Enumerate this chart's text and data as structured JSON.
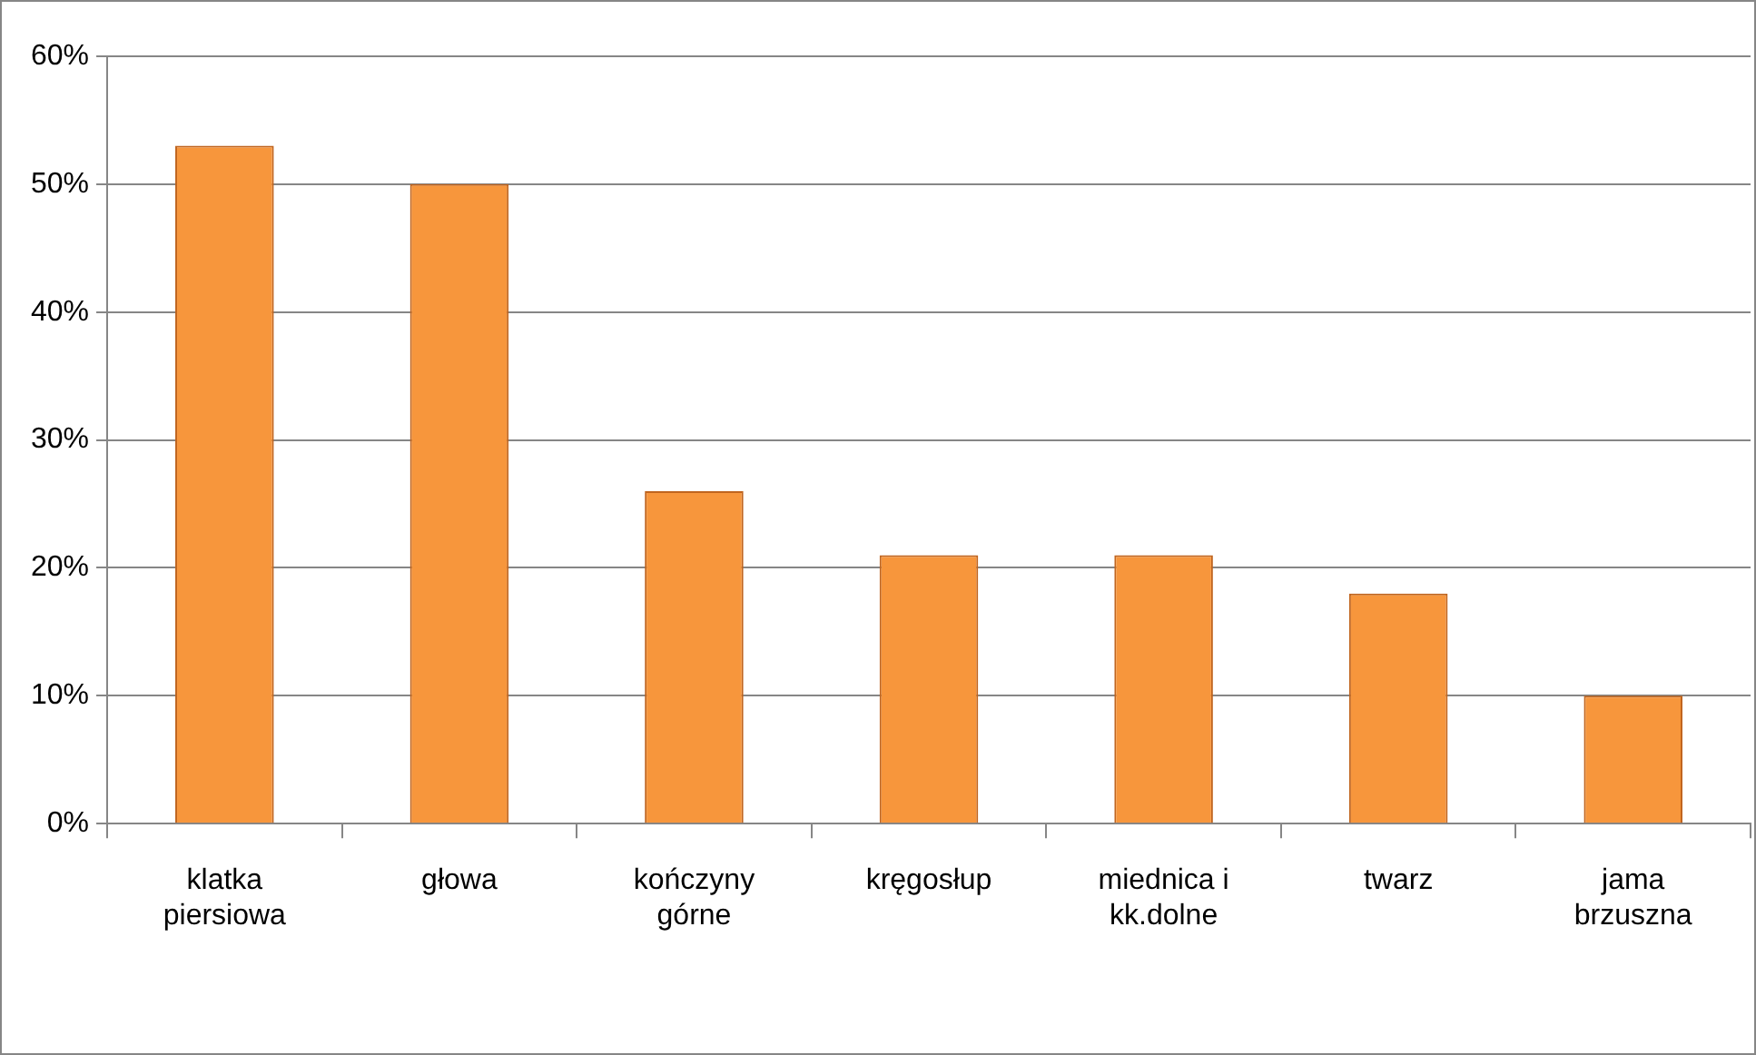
{
  "chart_data": {
    "type": "bar",
    "categories": [
      "klatka piersiowa",
      "głowa",
      "kończyny górne",
      "kręgosłup",
      "miednica i kk.dolne",
      "twarz",
      "jama brzuszna"
    ],
    "values": [
      53,
      50,
      26,
      21,
      21,
      18,
      10
    ],
    "color": "#f7963c",
    "ylim": [
      0,
      60
    ],
    "yticks": [
      {
        "value": 0,
        "label": "0%"
      },
      {
        "value": 10,
        "label": "10%"
      },
      {
        "value": 20,
        "label": "20%"
      },
      {
        "value": 30,
        "label": "30%"
      },
      {
        "value": 40,
        "label": "40%"
      },
      {
        "value": 50,
        "label": "50%"
      },
      {
        "value": 60,
        "label": "60%"
      }
    ],
    "grid": "y",
    "legend": false
  }
}
